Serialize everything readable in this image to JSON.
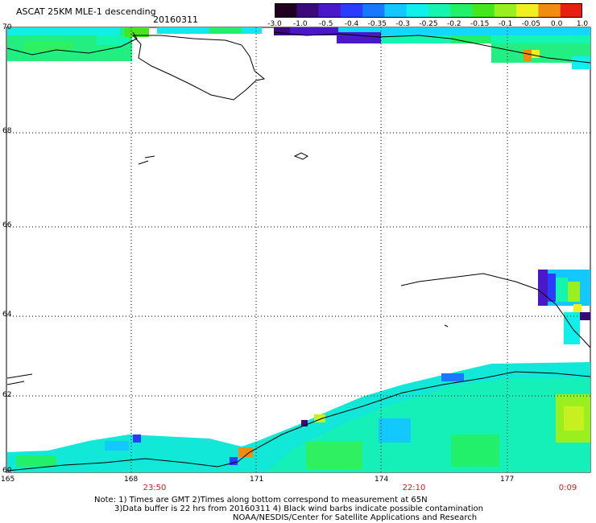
{
  "header": {
    "title": "ASCAT 25KM MLE-1 descending",
    "date": "20160311"
  },
  "colorbar": {
    "labels": [
      "-3.0",
      "-1.0",
      "-0.5",
      "-0.4",
      "-0.35",
      "-0.3",
      "-0.25",
      "-0.2",
      "-0.15",
      "-0.1",
      "-0.05",
      "0.0",
      "1.0"
    ],
    "colors": [
      "#200020",
      "#3c0a78",
      "#4a18c8",
      "#2a3cff",
      "#1a78ff",
      "#12c8ff",
      "#10f0ea",
      "#14f5b0",
      "#22f06a",
      "#46e61e",
      "#9af01e",
      "#f0f020",
      "#f08c12",
      "#e81e12"
    ]
  },
  "map": {
    "lat_labels": [
      "70",
      "68",
      "66",
      "64",
      "62",
      "60"
    ],
    "lon_labels": [
      "165",
      "168",
      "171",
      "174",
      "177"
    ],
    "time_labels": [
      "23:50",
      "22:10",
      "0:09"
    ]
  },
  "notes": {
    "line1": "Note: 1) Times are GMT 2)Times along bottom correspond to measurement at 65N",
    "line2": "3)Data buffer is 22 hrs from 20160311 4) Black wind barbs indicate possible contamination",
    "line3": "NOAA/NESDIS/Center for Satellite Applications and Research"
  }
}
